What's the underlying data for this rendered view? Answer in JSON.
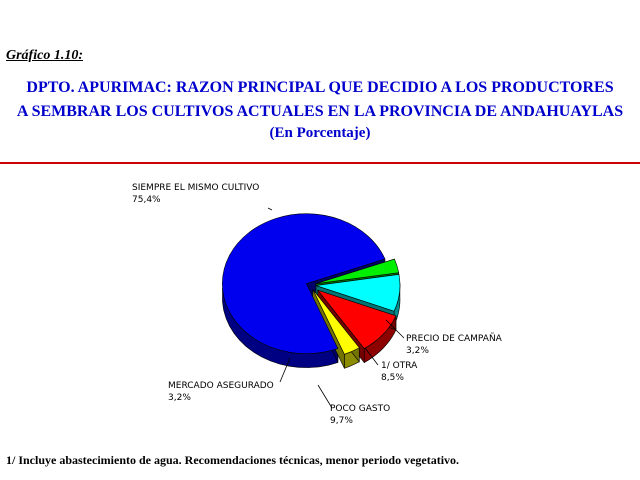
{
  "caption": "Gráfico 1.10:",
  "title_lines": [
    "DPTO. APURIMAC: RAZON PRINCIPAL QUE DECIDIO A LOS PRODUCTORES",
    "A SEMBRAR LOS CULTIVOS ACTUALES EN LA PROVINCIA DE ANDAHUAYLAS",
    "(En Porcentaje)"
  ],
  "footnote": "1/ Incluye abastecimiento de agua. Recomendaciones técnicas, menor periodo vegetativo.",
  "colors": {
    "title": "#0000cc",
    "rule": "#cc0000"
  },
  "chart_data": {
    "type": "pie",
    "title": "DPTO. APURIMAC: RAZON PRINCIPAL QUE DECIDIO A LOS PRODUCTORES A SEMBRAR LOS CULTIVOS ACTUALES EN LA PROVINCIA DE ANDAHUAYLAS",
    "unit": "(En Porcentaje)",
    "style": "3d exploded pie",
    "slices": [
      {
        "label": "SIEMPRE EL MISMO CULTIVO",
        "value_text": "75,4%",
        "value": 75.4,
        "color": "#0000ee"
      },
      {
        "label": "PRECIO DE CAMPAÑA",
        "value_text": "3,2%",
        "value": 3.2,
        "color": "#00ee00"
      },
      {
        "label": "1/ OTRA",
        "value_text": "8,5%",
        "value": 8.5,
        "color": "#00ffff"
      },
      {
        "label": "POCO GASTO",
        "value_text": "9,7%",
        "value": 9.7,
        "color": "#ff0000"
      },
      {
        "label": "MERCADO ASEGURADO",
        "value_text": "3,2%",
        "value": 3.2,
        "color": "#ffff00"
      }
    ]
  }
}
